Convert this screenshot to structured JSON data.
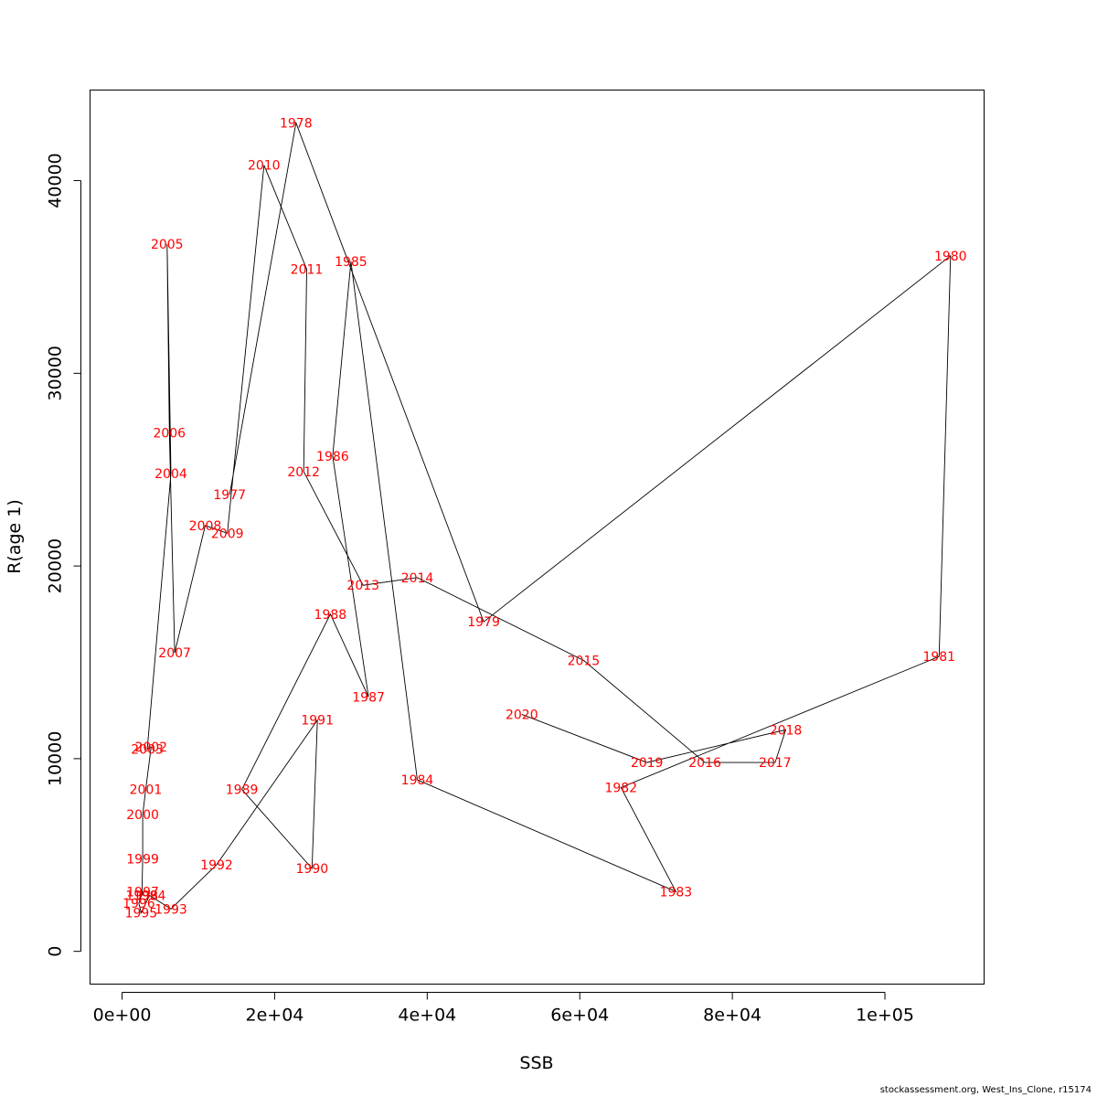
{
  "footer": "stockassessment.org, West_Ins_Clone, r15174",
  "chart_data": {
    "type": "line",
    "xlabel": "SSB",
    "ylabel": "R(age 1)",
    "xlim": [
      -4200,
      113000
    ],
    "ylim": [
      -1700,
      44700
    ],
    "x_ticks": [
      0,
      20000,
      40000,
      60000,
      80000,
      100000
    ],
    "x_tick_labels": [
      "0e+00",
      "2e+04",
      "4e+04",
      "6e+04",
      "8e+04",
      "1e+05"
    ],
    "y_ticks": [
      0,
      10000,
      20000,
      30000,
      40000
    ],
    "y_tick_labels": [
      "0",
      "10000",
      "20000",
      "30000",
      "40000"
    ],
    "line_color": "#000000",
    "label_color": "#ff0000",
    "points": [
      {
        "year": "1977",
        "x": 14100,
        "y": 23700
      },
      {
        "year": "1978",
        "x": 22800,
        "y": 43000
      },
      {
        "year": "1979",
        "x": 47400,
        "y": 17100
      },
      {
        "year": "1980",
        "x": 108600,
        "y": 36100
      },
      {
        "year": "1981",
        "x": 107100,
        "y": 15300
      },
      {
        "year": "1982",
        "x": 65400,
        "y": 8500
      },
      {
        "year": "1983",
        "x": 72600,
        "y": 3100
      },
      {
        "year": "1984",
        "x": 38700,
        "y": 8900
      },
      {
        "year": "1985",
        "x": 30000,
        "y": 35800
      },
      {
        "year": "1986",
        "x": 27600,
        "y": 25700
      },
      {
        "year": "1987",
        "x": 32300,
        "y": 13200
      },
      {
        "year": "1988",
        "x": 27300,
        "y": 17500
      },
      {
        "year": "1989",
        "x": 15700,
        "y": 8400
      },
      {
        "year": "1990",
        "x": 24900,
        "y": 4300
      },
      {
        "year": "1991",
        "x": 25600,
        "y": 12000
      },
      {
        "year": "1992",
        "x": 12400,
        "y": 4500
      },
      {
        "year": "1993",
        "x": 6400,
        "y": 2200
      },
      {
        "year": "1994",
        "x": 3600,
        "y": 2900
      },
      {
        "year": "1995",
        "x": 2500,
        "y": 2000
      },
      {
        "year": "1996",
        "x": 2200,
        "y": 2500
      },
      {
        "year": "1997",
        "x": 2700,
        "y": 3100
      },
      {
        "year": "1998",
        "x": 2600,
        "y": 2900
      },
      {
        "year": "1999",
        "x": 2700,
        "y": 4800
      },
      {
        "year": "2000",
        "x": 2700,
        "y": 7100
      },
      {
        "year": "2001",
        "x": 3100,
        "y": 8400
      },
      {
        "year": "2002",
        "x": 3800,
        "y": 10600
      },
      {
        "year": "2003",
        "x": 3300,
        "y": 10500
      },
      {
        "year": "2004",
        "x": 6400,
        "y": 24800
      },
      {
        "year": "2005",
        "x": 5900,
        "y": 36700
      },
      {
        "year": "2006",
        "x": 6200,
        "y": 26900
      },
      {
        "year": "2007",
        "x": 6900,
        "y": 15500
      },
      {
        "year": "2008",
        "x": 10900,
        "y": 22100
      },
      {
        "year": "2009",
        "x": 13800,
        "y": 21700
      },
      {
        "year": "2010",
        "x": 18600,
        "y": 40800
      },
      {
        "year": "2011",
        "x": 24200,
        "y": 35400
      },
      {
        "year": "2012",
        "x": 23800,
        "y": 24900
      },
      {
        "year": "2013",
        "x": 31600,
        "y": 19000
      },
      {
        "year": "2014",
        "x": 38700,
        "y": 19400
      },
      {
        "year": "2015",
        "x": 60500,
        "y": 15100
      },
      {
        "year": "2016",
        "x": 76400,
        "y": 9800
      },
      {
        "year": "2017",
        "x": 85600,
        "y": 9800
      },
      {
        "year": "2018",
        "x": 87000,
        "y": 11500
      },
      {
        "year": "2019",
        "x": 68800,
        "y": 9800
      },
      {
        "year": "2020",
        "x": 52400,
        "y": 12300
      }
    ]
  }
}
